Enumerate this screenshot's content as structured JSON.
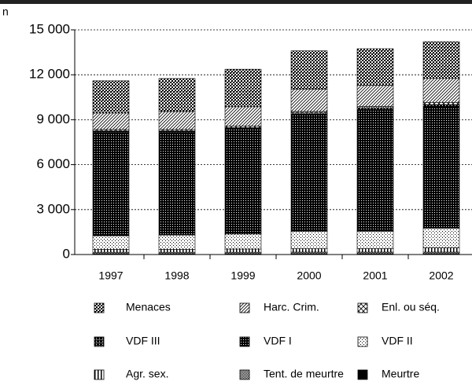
{
  "chart_data": {
    "type": "stacked_bar",
    "y_label": "n",
    "categories": [
      "1997",
      "1998",
      "1999",
      "2000",
      "2001",
      "2002"
    ],
    "series": [
      {
        "name": "Meurtre",
        "values": [
          50,
          50,
          50,
          50,
          50,
          50
        ]
      },
      {
        "name": "Tent. de meurtre",
        "values": [
          100,
          100,
          100,
          110,
          110,
          110
        ]
      },
      {
        "name": "Agr. sex.",
        "values": [
          200,
          200,
          220,
          230,
          240,
          300
        ]
      },
      {
        "name": "VDF II",
        "values": [
          900,
          950,
          1000,
          1150,
          1150,
          1300
        ]
      },
      {
        "name": "VDF I",
        "values": [
          6900,
          6850,
          7000,
          7800,
          8100,
          8100
        ]
      },
      {
        "name": "VDF III",
        "values": [
          100,
          100,
          100,
          110,
          120,
          150
        ]
      },
      {
        "name": "Enl. ou séq.",
        "values": [
          100,
          100,
          100,
          100,
          120,
          150
        ]
      },
      {
        "name": "Harc. Crim.",
        "values": [
          1100,
          1200,
          1300,
          1500,
          1400,
          1600
        ]
      },
      {
        "name": "Menaces",
        "values": [
          2150,
          2200,
          2500,
          2550,
          2450,
          2450
        ]
      }
    ],
    "ylim": [
      0,
      15000
    ],
    "yticks": [
      {
        "value": 0,
        "label": "0"
      },
      {
        "value": 3000,
        "label": "3 000"
      },
      {
        "value": 6000,
        "label": "6 000"
      },
      {
        "value": 9000,
        "label": "9 000"
      },
      {
        "value": 12000,
        "label": "12 000"
      },
      {
        "value": 15000,
        "label": "15 000"
      }
    ],
    "grid": true
  }
}
